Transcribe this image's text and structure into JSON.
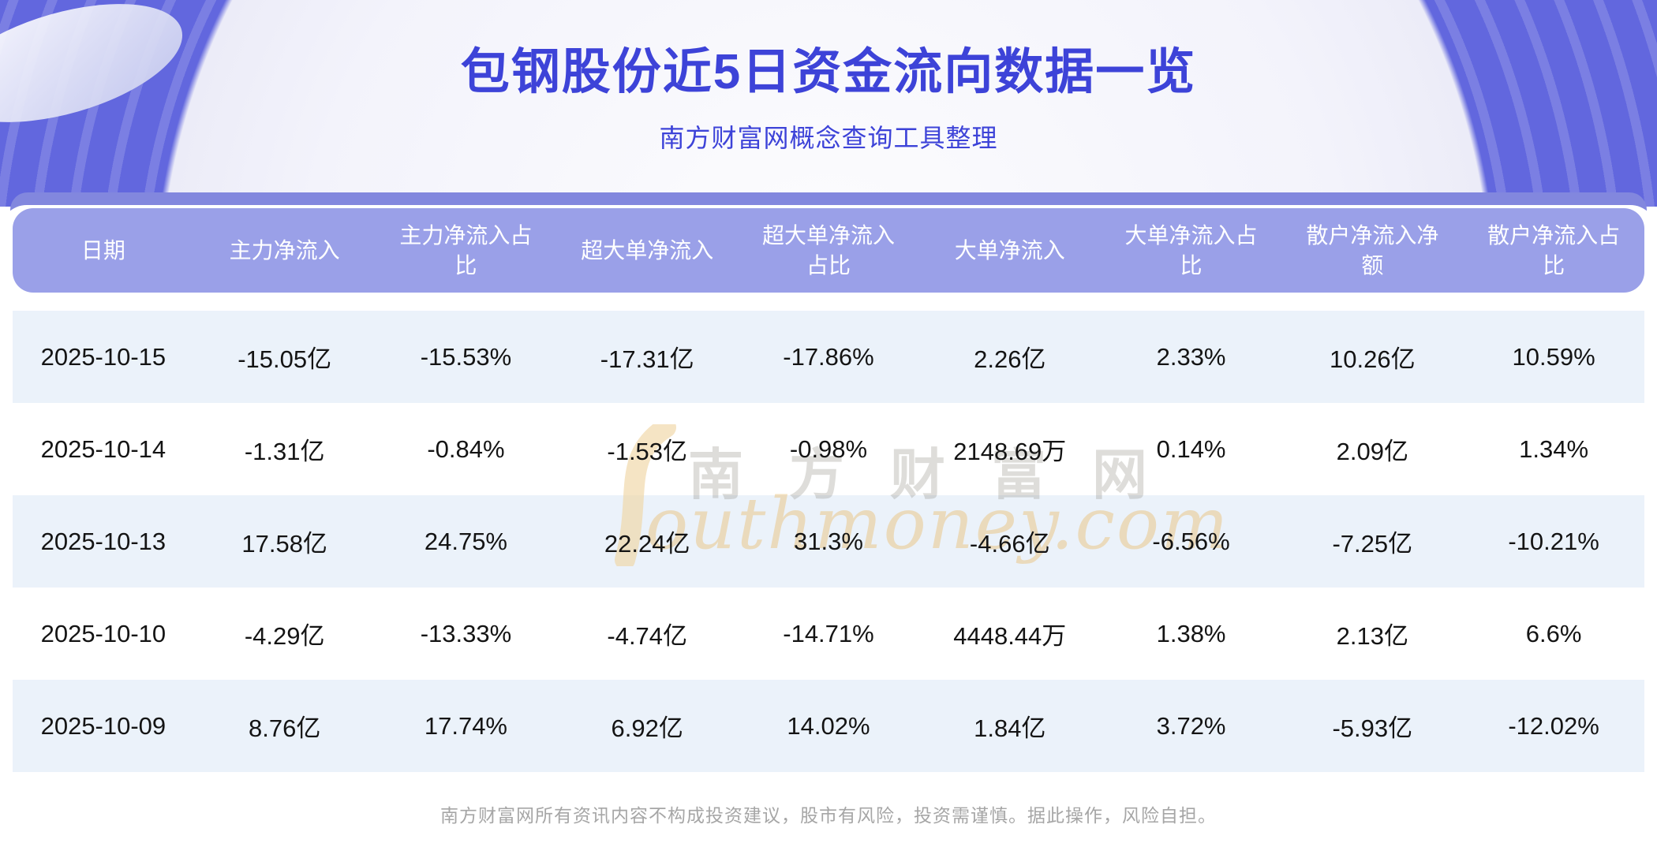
{
  "header": {
    "title": "包钢股份近5日资金流向数据一览",
    "subtitle": "南方财富网概念查询工具整理"
  },
  "table": {
    "columns": [
      "日期",
      "主力净流入",
      "主力净流入占比",
      "超大单净流入",
      "超大单净流入占比",
      "大单净流入",
      "大单净流入占比",
      "散户净流入净额",
      "散户净流入占比"
    ],
    "rows": [
      [
        "2025-10-15",
        "-15.05亿",
        "-15.53%",
        "-17.31亿",
        "-17.86%",
        "2.26亿",
        "2.33%",
        "10.26亿",
        "10.59%"
      ],
      [
        "2025-10-14",
        "-1.31亿",
        "-0.84%",
        "-1.53亿",
        "-0.98%",
        "2148.69万",
        "0.14%",
        "2.09亿",
        "1.34%"
      ],
      [
        "2025-10-13",
        "17.58亿",
        "24.75%",
        "22.24亿",
        "31.3%",
        "-4.66亿",
        "-6.56%",
        "-7.25亿",
        "-10.21%"
      ],
      [
        "2025-10-10",
        "-4.29亿",
        "-13.33%",
        "-4.74亿",
        "-14.71%",
        "4448.44万",
        "1.38%",
        "2.13亿",
        "6.6%"
      ],
      [
        "2025-10-09",
        "8.76亿",
        "17.74%",
        "6.92亿",
        "14.02%",
        "1.84亿",
        "3.72%",
        "-5.93亿",
        "-12.02%"
      ]
    ]
  },
  "watermark": {
    "cjk": "南方财富网",
    "latin": "outhmoney.com"
  },
  "footer": {
    "disclaimer": "南方财富网所有资讯内容不构成投资建议，股市有风险，投资需谨慎。据此操作，风险自担。"
  },
  "colors": {
    "banner_purple": "#6267de",
    "band_purple": "#8287de",
    "header_bg": "#9aa0e8",
    "row_alt_blue": "#ebf2fa",
    "title_blue": "#3d43d8",
    "watermark_tan": "#e9c689",
    "body_text": "#141414",
    "footer_gray": "#a6a6a6"
  }
}
